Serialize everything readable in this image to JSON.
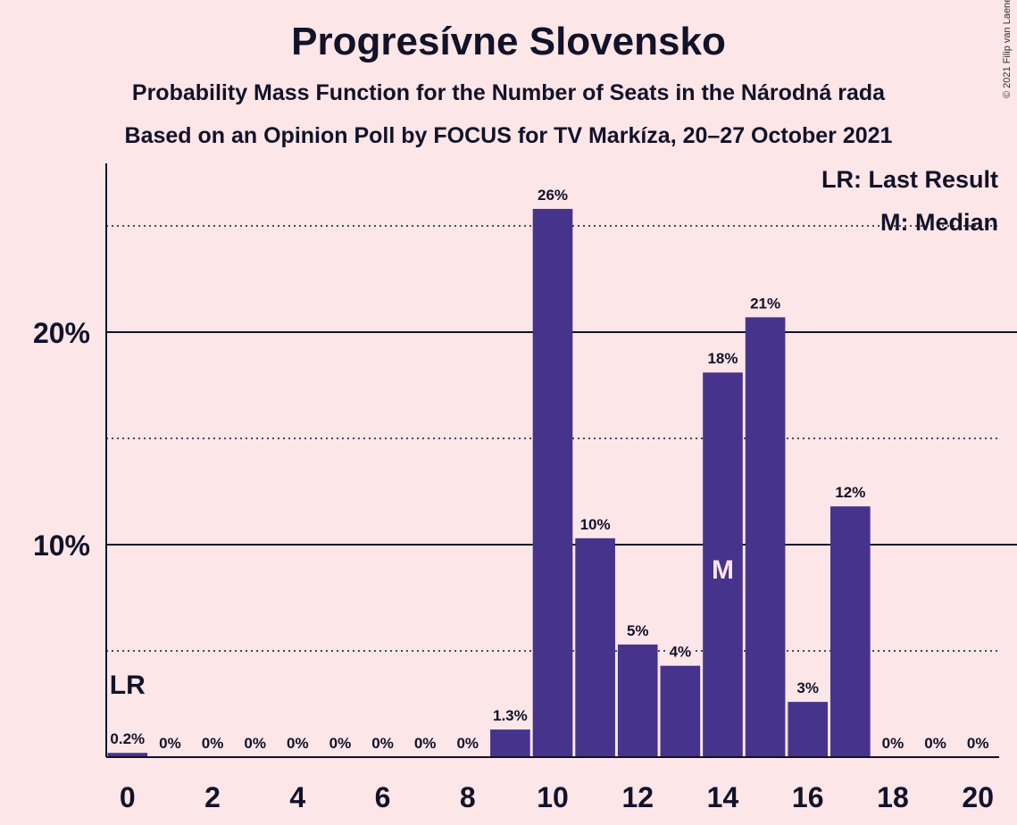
{
  "chart_data": {
    "type": "bar",
    "title": "Progresívne Slovensko",
    "subtitle1": "Probability Mass Function for the Number of Seats in the Národná rada",
    "subtitle2": "Based on an Opinion Poll by FOCUS for TV Markíza, 20–27 October 2021",
    "copyright": "© 2021 Filip van Laenen",
    "x": [
      0,
      1,
      2,
      3,
      4,
      5,
      6,
      7,
      8,
      9,
      10,
      11,
      12,
      13,
      14,
      15,
      16,
      17,
      18,
      19,
      20
    ],
    "values": [
      0.2,
      0,
      0,
      0,
      0,
      0,
      0,
      0,
      0,
      1.3,
      25.8,
      10.3,
      5.3,
      4.3,
      18.1,
      20.7,
      2.6,
      11.8,
      0,
      0,
      0
    ],
    "labels": [
      "0.2%",
      "0%",
      "0%",
      "0%",
      "0%",
      "0%",
      "0%",
      "0%",
      "0%",
      "1.3%",
      "26%",
      "10%",
      "5%",
      "4%",
      "18%",
      "21%",
      "3%",
      "12%",
      "0%",
      "0%",
      "0%"
    ],
    "x_ticks": [
      "0",
      "2",
      "4",
      "6",
      "8",
      "10",
      "12",
      "14",
      "16",
      "18",
      "20"
    ],
    "y_ticks": [
      {
        "value": 10,
        "label": "10%"
      },
      {
        "value": 20,
        "label": "20%"
      }
    ],
    "y_minor_gridlines": [
      5,
      15,
      25
    ],
    "ylim": [
      0,
      28
    ],
    "last_result": {
      "x": 0,
      "marker": "LR"
    },
    "median": {
      "x": 14,
      "marker": "M"
    },
    "legend": [
      "LR: Last Result",
      "M: Median"
    ],
    "colors": {
      "bar": "#45338c",
      "background": "#fde6e8",
      "text": "#121228",
      "median_marker": "#fde6e8"
    }
  }
}
